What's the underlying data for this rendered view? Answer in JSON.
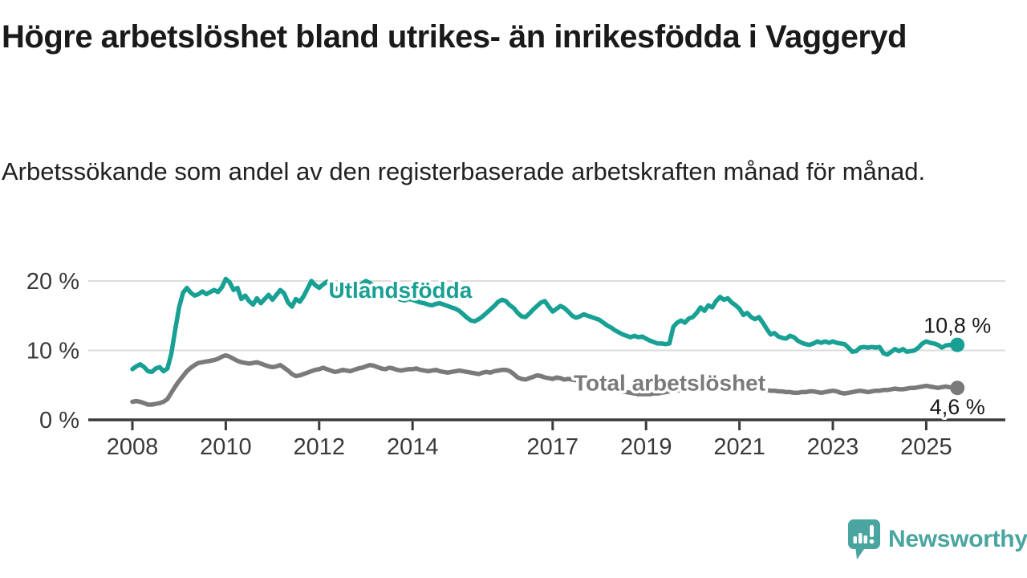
{
  "header": {
    "title": "Högre arbetslöshet bland utrikes- än inrikesfödda i Vaggeryd",
    "subtitle": "Arbetssökande som andel av den registerbaserade arbetskraften månad för månad."
  },
  "footer": {
    "brand": "Newsworthy",
    "brand_color": "#4aa5a0",
    "logo_icon": "speech-bubble-bar-chart-icon"
  },
  "chart_data": {
    "type": "line",
    "title": "",
    "xlabel": "",
    "ylabel": "",
    "x_unit": "month",
    "x_start": "2008-01",
    "x_end": "2025-09",
    "xlim": [
      2008,
      2025.9
    ],
    "ylim": [
      0,
      21
    ],
    "grid": "horizontal",
    "grid_color": "#dcdcdc",
    "axis_color": "#3a3a3a",
    "y_ticks": [
      {
        "value": 0,
        "label": "0 %"
      },
      {
        "value": 10,
        "label": "10 %"
      },
      {
        "value": 20,
        "label": "20 %"
      }
    ],
    "x_ticks": [
      {
        "year": 2008,
        "label": "2008"
      },
      {
        "year": 2010,
        "label": "2010"
      },
      {
        "year": 2012,
        "label": "2012"
      },
      {
        "year": 2014,
        "label": "2014"
      },
      {
        "year": 2017,
        "label": "2017"
      },
      {
        "year": 2019,
        "label": "2019"
      },
      {
        "year": 2021,
        "label": "2021"
      },
      {
        "year": 2023,
        "label": "2023"
      },
      {
        "year": 2025,
        "label": "2025"
      }
    ],
    "series": [
      {
        "name": "Utlandsfödda",
        "color": "#17a093",
        "end_value": 10.8,
        "end_value_label": "10,8 %",
        "end_label_position": "above",
        "label_anchor": {
          "year": 2012.2,
          "value": 17.6
        },
        "values": [
          7.3,
          7.7,
          8.0,
          7.6,
          7.0,
          6.9,
          7.4,
          7.6,
          7.0,
          7.4,
          9.5,
          13.0,
          16.2,
          18.3,
          19.0,
          18.3,
          17.9,
          18.1,
          18.5,
          18.1,
          18.4,
          18.7,
          18.4,
          19.1,
          20.3,
          19.8,
          18.7,
          19.0,
          17.4,
          17.9,
          17.1,
          16.6,
          17.5,
          16.8,
          17.4,
          18.0,
          17.3,
          18.0,
          18.7,
          18.2,
          16.9,
          16.3,
          17.4,
          17.0,
          17.8,
          18.9,
          20.0,
          19.4,
          19.0,
          19.5,
          19.9,
          19.3,
          18.7,
          19.0,
          19.4,
          18.9,
          18.5,
          18.8,
          19.2,
          19.6,
          20.0,
          19.7,
          19.3,
          18.8,
          18.4,
          18.0,
          17.8,
          17.6,
          17.5,
          17.3,
          17.2,
          17.4,
          17.3,
          17.1,
          16.9,
          16.8,
          16.6,
          16.5,
          16.7,
          16.8,
          16.6,
          16.4,
          16.2,
          16.0,
          15.7,
          15.2,
          14.7,
          14.3,
          14.2,
          14.5,
          14.9,
          15.4,
          15.9,
          16.4,
          17.0,
          17.3,
          17.1,
          16.5,
          16.1,
          15.4,
          14.9,
          14.8,
          15.3,
          15.9,
          16.4,
          16.9,
          17.1,
          16.3,
          15.6,
          16.0,
          16.4,
          16.1,
          15.6,
          15.0,
          14.7,
          14.9,
          15.2,
          15.0,
          14.8,
          14.6,
          14.4,
          14.0,
          13.6,
          13.3,
          12.9,
          12.6,
          12.3,
          12.1,
          11.9,
          12.1,
          11.9,
          12.0,
          11.7,
          11.4,
          11.2,
          11.0,
          11.0,
          10.9,
          11.0,
          13.4,
          14.0,
          14.3,
          14.0,
          14.6,
          14.8,
          15.4,
          16.2,
          15.7,
          16.5,
          16.2,
          17.1,
          17.7,
          17.3,
          17.5,
          16.9,
          16.5,
          16.0,
          15.1,
          15.4,
          14.8,
          14.5,
          14.8,
          14.0,
          13.1,
          12.3,
          12.5,
          12.0,
          11.8,
          11.7,
          12.1,
          11.9,
          11.4,
          11.1,
          10.9,
          10.8,
          11.0,
          11.3,
          11.1,
          11.3,
          11.1,
          11.3,
          11.1,
          11.0,
          10.9,
          10.4,
          9.8,
          9.9,
          10.4,
          10.5,
          10.4,
          10.5,
          10.4,
          10.5,
          9.6,
          9.4,
          9.8,
          10.2,
          9.9,
          10.2,
          9.8,
          9.9,
          10.0,
          10.4,
          11.0,
          11.3,
          11.1,
          11.0,
          10.8,
          10.4,
          10.7,
          10.8,
          10.6,
          10.8
        ]
      },
      {
        "name": "Total arbetslöshet",
        "color": "#7a7a7a",
        "end_value": 4.6,
        "end_value_label": "4,6 %",
        "end_label_position": "below",
        "label_anchor": {
          "year": 2017.45,
          "value": 4.2
        },
        "values": [
          2.6,
          2.7,
          2.6,
          2.4,
          2.2,
          2.2,
          2.3,
          2.4,
          2.6,
          3.0,
          3.9,
          4.8,
          5.6,
          6.3,
          7.0,
          7.5,
          7.9,
          8.2,
          8.3,
          8.4,
          8.5,
          8.6,
          8.8,
          9.1,
          9.3,
          9.1,
          8.8,
          8.5,
          8.3,
          8.2,
          8.1,
          8.2,
          8.3,
          8.1,
          7.9,
          7.7,
          7.6,
          7.7,
          7.9,
          7.5,
          7.1,
          6.6,
          6.3,
          6.4,
          6.6,
          6.8,
          7.0,
          7.2,
          7.3,
          7.5,
          7.3,
          7.1,
          6.9,
          7.0,
          7.2,
          7.1,
          7.0,
          7.2,
          7.4,
          7.5,
          7.7,
          7.9,
          7.8,
          7.6,
          7.4,
          7.3,
          7.5,
          7.4,
          7.2,
          7.1,
          7.2,
          7.3,
          7.3,
          7.4,
          7.2,
          7.1,
          7.0,
          7.1,
          7.2,
          7.0,
          6.9,
          6.8,
          6.9,
          7.0,
          7.1,
          7.0,
          6.9,
          6.8,
          6.7,
          6.6,
          6.8,
          6.9,
          6.8,
          7.0,
          7.1,
          7.2,
          7.2,
          7.0,
          6.6,
          6.1,
          5.9,
          5.8,
          6.0,
          6.2,
          6.4,
          6.3,
          6.1,
          6.0,
          5.9,
          6.1,
          6.0,
          5.8,
          5.9,
          5.8,
          5.7,
          5.6,
          5.5,
          5.4,
          5.3,
          5.2,
          5.1,
          5.0,
          4.8,
          4.6,
          4.4,
          4.2,
          4.1,
          4.0,
          3.9,
          3.8,
          3.7,
          3.7,
          3.7,
          3.7,
          3.8,
          3.8,
          3.9,
          4.0,
          4.1,
          4.2,
          4.2,
          4.3,
          4.4,
          4.5,
          4.6,
          4.7,
          5.0,
          5.4,
          5.6,
          5.7,
          5.6,
          5.5,
          5.4,
          5.3,
          5.2,
          5.1,
          5.0,
          4.9,
          4.8,
          4.7,
          4.6,
          4.5,
          4.4,
          4.3,
          4.2,
          4.2,
          4.1,
          4.1,
          4.0,
          4.0,
          3.9,
          3.9,
          4.0,
          4.0,
          4.1,
          4.1,
          4.0,
          3.9,
          4.0,
          4.1,
          4.2,
          4.1,
          3.9,
          3.8,
          3.9,
          4.0,
          4.1,
          4.2,
          4.1,
          4.0,
          4.1,
          4.2,
          4.2,
          4.3,
          4.3,
          4.4,
          4.5,
          4.4,
          4.4,
          4.5,
          4.6,
          4.6,
          4.7,
          4.8,
          4.9,
          4.8,
          4.7,
          4.6,
          4.7,
          4.8,
          4.7,
          4.6,
          4.6
        ]
      }
    ]
  }
}
